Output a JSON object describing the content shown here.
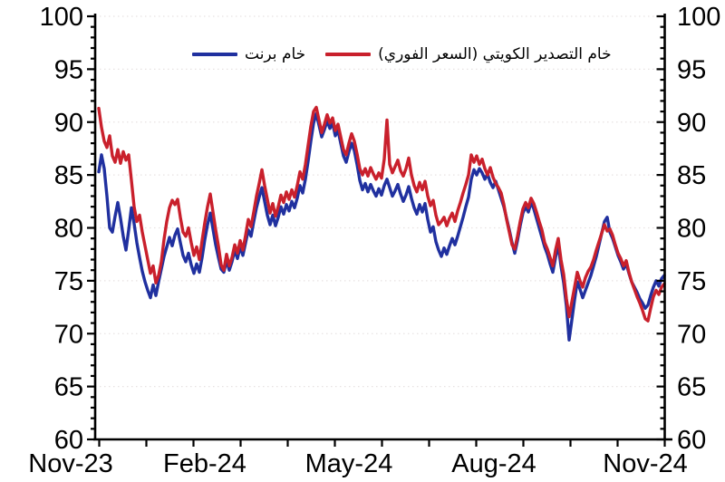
{
  "legend": {
    "brent_label": "خام برنت",
    "kuwait_label": "خام التصدير الكويتي (السعر الفوري)"
  },
  "colors": {
    "brent": "#20309F",
    "kuwait": "#C9202C",
    "axis": "#000000",
    "grid": "#E7E2E2",
    "text": "#000000"
  },
  "y_axis": {
    "min": 60,
    "max": 100,
    "major_step": 5,
    "minor_step": 1,
    "tick_labels": [
      "100",
      "95",
      "90",
      "85",
      "80",
      "75",
      "70",
      "65",
      "60"
    ]
  },
  "x_axis": {
    "months_total": 12,
    "minor_tick": "monthly",
    "tick_labels": [
      "Nov-23",
      "Feb-24",
      "May-24",
      "Aug-24",
      "Nov-24"
    ]
  },
  "chart_data": {
    "type": "line",
    "title": "",
    "xlabel": "",
    "ylabel": "",
    "ylim": [
      60,
      100
    ],
    "x_range": [
      "Nov-23",
      "Nov-24"
    ],
    "grid": "horizontal-dotted",
    "legend_position": "top-center",
    "sampling": "209 uniform samples, Nov-2023 through Nov-2024",
    "series": [
      {
        "name": "خام برنت",
        "name_en": "Brent crude",
        "color": "#20309F",
        "values": [
          85.3,
          86.9,
          85.6,
          83.0,
          80.0,
          79.6,
          81.1,
          82.4,
          80.9,
          79.2,
          77.9,
          79.8,
          81.9,
          80.4,
          78.6,
          77.2,
          75.9,
          74.9,
          74.1,
          73.4,
          74.6,
          73.6,
          74.9,
          76.1,
          77.3,
          78.2,
          79.1,
          78.3,
          79.3,
          79.9,
          78.6,
          77.4,
          76.8,
          77.6,
          76.5,
          75.7,
          76.6,
          75.8,
          77.2,
          78.9,
          80.3,
          81.4,
          79.9,
          78.4,
          77.2,
          76.1,
          75.8,
          76.9,
          76.0,
          76.8,
          77.9,
          77.1,
          78.2,
          77.4,
          78.6,
          79.8,
          79.2,
          80.6,
          81.9,
          82.9,
          83.8,
          82.5,
          81.2,
          80.3,
          81.2,
          80.2,
          81.0,
          82.0,
          81.3,
          82.2,
          81.6,
          82.5,
          81.9,
          82.8,
          84.0,
          83.3,
          84.6,
          86.3,
          88.2,
          89.9,
          90.8,
          89.7,
          88.6,
          89.3,
          90.1,
          89.4,
          89.9,
          88.7,
          89.2,
          88.0,
          86.8,
          86.2,
          87.2,
          88.0,
          87.3,
          86.0,
          84.5,
          83.6,
          84.2,
          83.4,
          84.1,
          83.5,
          83.0,
          83.7,
          83.1,
          84.0,
          84.6,
          83.8,
          83.0,
          83.5,
          84.1,
          83.2,
          82.5,
          83.1,
          83.9,
          82.8,
          81.9,
          81.3,
          82.2,
          81.5,
          82.3,
          80.8,
          79.6,
          80.1,
          78.7,
          77.9,
          77.3,
          78.1,
          77.5,
          78.3,
          79.0,
          78.4,
          79.2,
          80.1,
          81.0,
          82.0,
          82.9,
          84.6,
          85.5,
          85.0,
          85.6,
          85.2,
          84.6,
          85.1,
          84.3,
          83.8,
          84.4,
          83.6,
          82.8,
          82.0,
          80.9,
          79.8,
          78.6,
          77.6,
          78.8,
          80.2,
          81.4,
          82.0,
          81.5,
          82.4,
          81.8,
          80.9,
          80.0,
          79.1,
          78.2,
          77.5,
          76.6,
          75.8,
          77.2,
          78.4,
          76.4,
          74.8,
          72.6,
          69.4,
          71.3,
          73.2,
          74.9,
          74.2,
          73.4,
          74.1,
          74.8,
          75.5,
          76.4,
          77.3,
          78.4,
          79.5,
          80.6,
          81.0,
          79.6,
          79.0,
          78.2,
          77.4,
          76.8,
          76.1,
          76.6,
          75.7,
          74.9,
          74.4,
          73.9,
          73.3,
          72.9,
          72.4,
          72.7,
          73.6,
          74.4,
          75.0,
          74.5,
          75.2,
          75.5
        ]
      },
      {
        "name": "خام التصدير الكويتي (السعر الفوري)",
        "name_en": "Kuwait export crude (spot price)",
        "color": "#C9202C",
        "values": [
          91.3,
          89.5,
          88.2,
          87.6,
          88.7,
          86.8,
          86.2,
          87.4,
          86.1,
          87.2,
          86.4,
          86.9,
          84.5,
          82.0,
          80.6,
          81.2,
          79.6,
          78.3,
          77.0,
          75.7,
          76.4,
          74.8,
          75.5,
          76.8,
          78.9,
          80.6,
          81.9,
          82.6,
          82.2,
          82.7,
          81.0,
          79.6,
          79.2,
          80.0,
          78.6,
          77.4,
          78.2,
          77.0,
          78.8,
          80.5,
          82.0,
          83.2,
          81.5,
          79.8,
          78.3,
          76.5,
          76.0,
          77.5,
          76.4,
          77.2,
          78.4,
          77.6,
          78.8,
          77.9,
          79.3,
          80.8,
          80.1,
          81.5,
          83.0,
          84.2,
          85.5,
          84.0,
          82.7,
          81.4,
          82.3,
          81.1,
          82.0,
          83.1,
          82.4,
          83.4,
          82.7,
          83.6,
          82.9,
          84.0,
          85.3,
          84.6,
          86.0,
          87.8,
          89.6,
          91.0,
          91.4,
          90.2,
          89.0,
          89.8,
          90.7,
          89.9,
          90.4,
          89.2,
          89.8,
          88.6,
          87.4,
          86.9,
          88.0,
          88.9,
          88.2,
          87.0,
          85.6,
          85.0,
          85.6,
          84.9,
          85.7,
          85.1,
          84.6,
          85.2,
          84.7,
          86.5,
          90.2,
          86.0,
          85.2,
          85.8,
          86.4,
          85.4,
          84.9,
          85.6,
          86.6,
          85.0,
          84.0,
          83.4,
          84.3,
          83.6,
          84.4,
          83.0,
          82.1,
          82.6,
          81.2,
          80.3,
          80.6,
          81.0,
          80.2,
          80.9,
          81.4,
          80.6,
          81.6,
          82.4,
          83.3,
          84.1,
          85.0,
          86.9,
          86.2,
          86.8,
          86.0,
          86.5,
          85.6,
          85.0,
          85.7,
          84.8,
          84.2,
          83.8,
          83.3,
          82.2,
          80.8,
          79.6,
          78.4,
          78.0,
          79.2,
          80.6,
          81.8,
          82.4,
          81.9,
          82.8,
          82.3,
          81.5,
          80.6,
          79.8,
          78.6,
          78.0,
          77.2,
          76.4,
          77.9,
          79.0,
          77.0,
          75.6,
          73.3,
          71.6,
          73.0,
          74.4,
          75.8,
          75.0,
          74.4,
          75.3,
          75.9,
          76.3,
          77.0,
          77.9,
          78.7,
          79.5,
          80.3,
          79.7,
          79.9,
          79.3,
          78.4,
          77.6,
          77.1,
          76.4,
          76.9,
          75.8,
          74.9,
          74.2,
          73.5,
          72.9,
          72.2,
          71.4,
          71.2,
          72.4,
          73.5,
          74.1,
          73.7,
          74.4,
          74.7
        ]
      }
    ]
  }
}
